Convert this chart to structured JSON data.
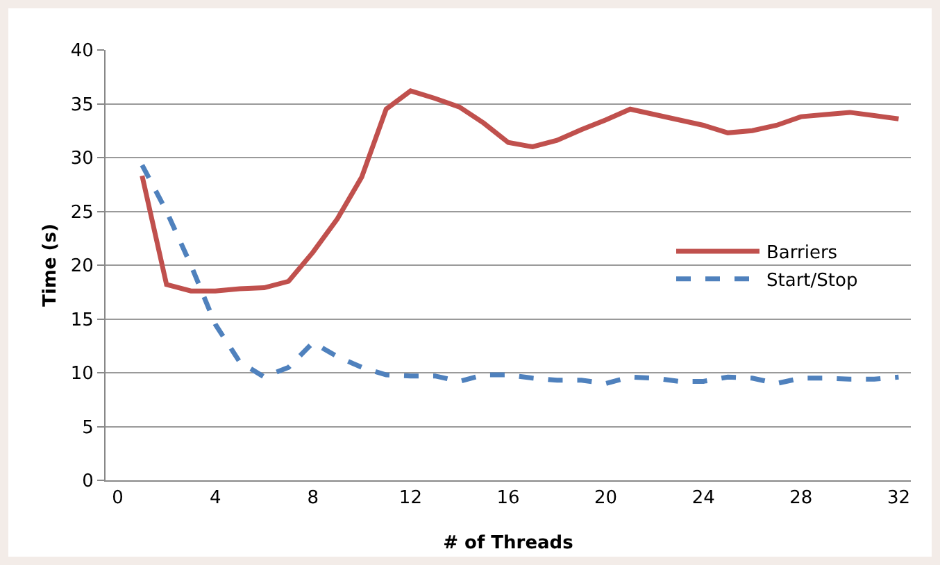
{
  "chart_data": {
    "type": "line",
    "xlabel": "# of Threads",
    "ylabel": "Time (s)",
    "x": [
      1,
      2,
      3,
      4,
      5,
      6,
      7,
      8,
      9,
      10,
      11,
      12,
      13,
      14,
      15,
      16,
      17,
      18,
      19,
      20,
      21,
      22,
      23,
      24,
      25,
      26,
      27,
      28,
      29,
      30,
      31,
      32
    ],
    "series": [
      {
        "name": "Barriers",
        "color": "#c0504d",
        "line_style": "solid",
        "values": [
          28.3,
          18.2,
          17.6,
          17.6,
          17.8,
          17.9,
          18.5,
          21.2,
          24.3,
          28.2,
          34.5,
          36.2,
          35.5,
          34.7,
          33.2,
          31.4,
          31.0,
          31.6,
          32.6,
          33.5,
          34.5,
          34.0,
          33.5,
          33.0,
          32.3,
          32.5,
          33.0,
          33.8,
          34.0,
          34.2,
          33.9,
          33.6
        ]
      },
      {
        "name": "Start/Stop",
        "color": "#4f81bd",
        "line_style": "dashed",
        "values": [
          29.3,
          25,
          20,
          14.5,
          11,
          9.6,
          10.5,
          12.8,
          11.5,
          10.5,
          9.8,
          9.7,
          9.7,
          9.2,
          9.8,
          9.8,
          9.5,
          9.3,
          9.3,
          9.0,
          9.6,
          9.5,
          9.2,
          9.2,
          9.6,
          9.5,
          9.0,
          9.5,
          9.5,
          9.4,
          9.4,
          9.6
        ]
      }
    ],
    "xlim": [
      -0.5,
      32.5
    ],
    "xticks": [
      0,
      4,
      8,
      12,
      16,
      20,
      24,
      28,
      32
    ],
    "ylim": [
      0,
      40
    ],
    "yticks": [
      0,
      5,
      10,
      15,
      20,
      25,
      30,
      35,
      40
    ],
    "grid": "y",
    "legend": "right",
    "marker": "none"
  }
}
